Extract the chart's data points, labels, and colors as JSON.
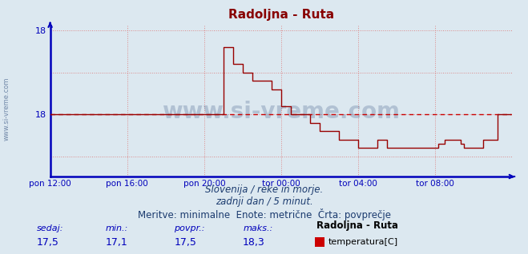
{
  "title": "Radoljna - Ruta",
  "title_color": "#880000",
  "bg_color": "#dce8f0",
  "plot_bg_color": "#dce8f0",
  "axis_color": "#0000bb",
  "grid_color": "#dd8888",
  "avg_line_color": "#cc0000",
  "line_color": "#990000",
  "watermark_color": "#1a3a6e",
  "xlim_min": 0,
  "xlim_max": 288,
  "ylim_min": 16.76,
  "ylim_max": 18.56,
  "avg_value": 17.5,
  "ytick_vals": [
    17.0,
    17.5,
    18.0,
    18.5
  ],
  "ytick_labels": [
    "",
    "18",
    "",
    "18"
  ],
  "xtick_positions": [
    0,
    48,
    96,
    144,
    192,
    240
  ],
  "xtick_labels": [
    "pon 12:00",
    "pon 16:00",
    "pon 20:00",
    "tor 00:00",
    "tor 04:00",
    "tor 08:00"
  ],
  "footer_lines": [
    "Slovenija / reke in morje.",
    "zadnji dan / 5 minut.",
    "Meritve: minimalne  Enote: metrične  Črta: povprečje"
  ],
  "footer_color": "#1a3a6e",
  "footer_fontsize": 8.5,
  "stats_labels": [
    "sedaj:",
    "min.:",
    "povpr.:",
    "maks.:"
  ],
  "stats_values": [
    "17,5",
    "17,1",
    "17,5",
    "18,3"
  ],
  "stats_color": "#0000bb",
  "legend_label": "Radoljna - Ruta",
  "legend_series": "temperatura[C]",
  "legend_color": "#cc0000",
  "watermark_text": "www.si-vreme.com",
  "watermark_fontsize": 20,
  "sidewatermark_text": "www.si-vreme.com",
  "sidewatermark_fontsize": 6,
  "data_x": [
    0,
    1,
    96,
    97,
    108,
    114,
    120,
    126,
    132,
    138,
    144,
    150,
    156,
    162,
    168,
    174,
    180,
    186,
    192,
    198,
    204,
    210,
    216,
    222,
    228,
    234,
    240,
    242,
    246,
    252,
    256,
    258,
    261,
    264,
    267,
    270,
    273,
    276,
    279,
    282,
    284,
    286,
    287
  ],
  "data_y": [
    17.5,
    17.5,
    17.5,
    17.5,
    18.3,
    18.1,
    18.0,
    17.9,
    17.9,
    17.8,
    17.6,
    17.5,
    17.5,
    17.4,
    17.3,
    17.3,
    17.2,
    17.2,
    17.1,
    17.1,
    17.2,
    17.1,
    17.1,
    17.1,
    17.1,
    17.1,
    17.1,
    17.15,
    17.2,
    17.2,
    17.15,
    17.1,
    17.1,
    17.1,
    17.1,
    17.2,
    17.2,
    17.2,
    17.5,
    17.5,
    17.5,
    17.5,
    17.5
  ]
}
